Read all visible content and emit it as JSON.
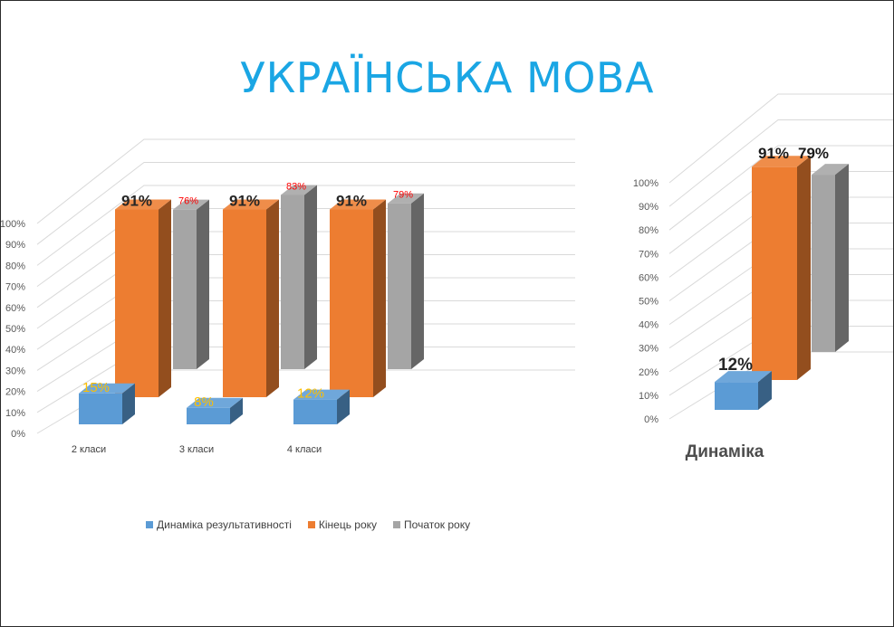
{
  "title": "УКРАЇНСЬКА МОВА",
  "colors": {
    "dynamics": "#5b9bd5",
    "end": "#ed7d31",
    "start": "#a5a5a5",
    "title": "#1aa6e4",
    "start_label": "#ff0000",
    "dynamics_label": "#ffc000"
  },
  "chart_data": [
    {
      "type": "bar",
      "categories": [
        "2 класи",
        "3 класи",
        "4 класи"
      ],
      "series": [
        {
          "name": "Динаміка результативності",
          "values": [
            15,
            8,
            12
          ],
          "labels": [
            "15%",
            "8%",
            "12%"
          ]
        },
        {
          "name": "Кінець року",
          "values": [
            91,
            91,
            91
          ],
          "labels": [
            "91%",
            "91%",
            "91%"
          ]
        },
        {
          "name": "Початок року",
          "values": [
            76,
            83,
            79
          ],
          "labels": [
            "76%",
            "83%",
            "79%"
          ]
        }
      ],
      "ylim": [
        0,
        100
      ],
      "yticks": [
        "0%",
        "10%",
        "20%",
        "30%",
        "40%",
        "50%",
        "60%",
        "70%",
        "80%",
        "90%",
        "100%"
      ],
      "grid": true,
      "legend": "bottom"
    },
    {
      "type": "bar",
      "categories": [
        "Динаміка"
      ],
      "series": [
        {
          "name": "Динаміка результативності",
          "values": [
            12
          ],
          "labels": [
            "12%"
          ]
        },
        {
          "name": "Кінець року",
          "values": [
            91
          ],
          "labels": [
            "91%"
          ]
        },
        {
          "name": "Початок року",
          "values": [
            79
          ],
          "labels": [
            "79%"
          ]
        }
      ],
      "ylim": [
        0,
        100
      ],
      "yticks": [
        "0%",
        "10%",
        "20%",
        "30%",
        "40%",
        "50%",
        "60%",
        "70%",
        "80%",
        "90%",
        "100%"
      ],
      "grid": true
    }
  ]
}
